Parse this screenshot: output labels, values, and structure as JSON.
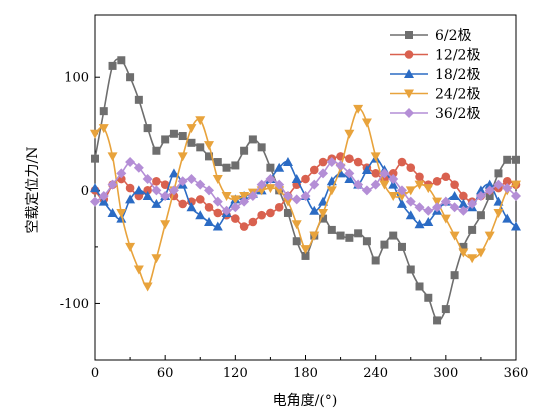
{
  "chart_data": {
    "type": "line",
    "xlabel": "电角度/(°)",
    "ylabel": "空载定位力/N",
    "xlim": [
      0,
      360
    ],
    "ylim": [
      -150,
      155
    ],
    "xticks": [
      0,
      60,
      120,
      180,
      240,
      300,
      360
    ],
    "yticks": [
      -100,
      0,
      100
    ],
    "grid": false,
    "legend": "top-right",
    "x": [
      0,
      7.5,
      15,
      22.5,
      30,
      37.5,
      45,
      52.5,
      60,
      67.5,
      75,
      82.5,
      90,
      97.5,
      105,
      112.5,
      120,
      127.5,
      135,
      142.5,
      150,
      157.5,
      165,
      172.5,
      180,
      187.5,
      195,
      202.5,
      210,
      217.5,
      225,
      232.5,
      240,
      247.5,
      255,
      262.5,
      270,
      277.5,
      285,
      292.5,
      300,
      307.5,
      315,
      322.5,
      330,
      337.5,
      345,
      352.5,
      360
    ],
    "series": [
      {
        "name": "6/2极",
        "color": "#6e6e6e",
        "marker": "square",
        "values": [
          28,
          70,
          110,
          115,
          100,
          80,
          55,
          35,
          45,
          50,
          48,
          42,
          38,
          30,
          25,
          20,
          22,
          35,
          45,
          38,
          20,
          0,
          -20,
          -45,
          -58,
          -40,
          -25,
          -35,
          -40,
          -42,
          -38,
          -45,
          -62,
          -48,
          -40,
          -50,
          -70,
          -85,
          -95,
          -115,
          -105,
          -75,
          -50,
          -35,
          -22,
          -5,
          15,
          27,
          27
        ]
      },
      {
        "name": "12/2极",
        "color": "#d9614f",
        "marker": "circle",
        "values": [
          0,
          -8,
          5,
          10,
          2,
          -5,
          0,
          8,
          5,
          -5,
          -12,
          -10,
          -8,
          -15,
          -20,
          -22,
          -25,
          -32,
          -28,
          -22,
          -20,
          -15,
          -5,
          5,
          10,
          18,
          25,
          28,
          30,
          28,
          25,
          20,
          15,
          10,
          15,
          25,
          20,
          12,
          5,
          8,
          12,
          5,
          -5,
          -10,
          -5,
          0,
          2,
          8,
          5
        ]
      },
      {
        "name": "18/2极",
        "color": "#2b6bc4",
        "marker": "triangle",
        "values": [
          2,
          -10,
          -20,
          -25,
          -8,
          0,
          -5,
          -12,
          -5,
          15,
          5,
          -15,
          -22,
          -28,
          -32,
          -20,
          -8,
          -5,
          -3,
          0,
          10,
          20,
          25,
          10,
          -5,
          -18,
          -10,
          8,
          15,
          10,
          5,
          18,
          28,
          18,
          5,
          -12,
          -22,
          -30,
          -28,
          -18,
          -10,
          -5,
          -12,
          -15,
          0,
          5,
          -10,
          -25,
          -32
        ]
      },
      {
        "name": "24/2极",
        "color": "#e8a33c",
        "marker": "triangle-down",
        "values": [
          50,
          55,
          30,
          -20,
          -50,
          -70,
          -85,
          -60,
          -30,
          0,
          30,
          55,
          62,
          40,
          10,
          -5,
          -8,
          -5,
          -2,
          0,
          2,
          0,
          -10,
          -30,
          -52,
          -40,
          -20,
          0,
          20,
          50,
          72,
          60,
          30,
          5,
          -5,
          -5,
          0,
          5,
          2,
          -10,
          -25,
          -40,
          -55,
          -60,
          -55,
          -40,
          -20,
          0,
          5
        ]
      },
      {
        "name": "36/2极",
        "color": "#b48ed6",
        "marker": "diamond",
        "values": [
          -10,
          -5,
          5,
          15,
          25,
          20,
          10,
          0,
          -5,
          0,
          8,
          10,
          5,
          0,
          -10,
          -18,
          -15,
          -10,
          -5,
          5,
          10,
          5,
          -5,
          -8,
          -5,
          5,
          15,
          25,
          22,
          15,
          5,
          0,
          5,
          15,
          10,
          0,
          -10,
          -15,
          -18,
          -15,
          -10,
          -15,
          -18,
          -12,
          -5,
          0,
          5,
          2,
          -5
        ]
      }
    ]
  }
}
